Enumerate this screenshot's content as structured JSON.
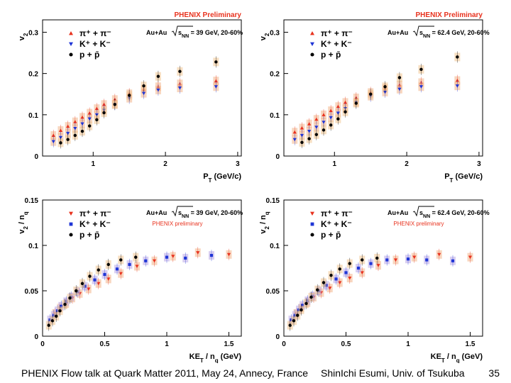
{
  "chart_data": [
    {
      "type": "scatter",
      "preliminary_label": "PHENIX Preliminary",
      "ylabel": "v",
      "ylabel_sub": "2",
      "xlabel": "P",
      "xlabel_sub": "T",
      "xlabel_unit": " (GeV/c)",
      "system_pre": "Au+Au ",
      "system_snn": "s",
      "system_snn_sub": "NN",
      "system_post": " = 39 GeV, 20-60%",
      "xlim": [
        0.3,
        3.05
      ],
      "ylim": [
        0,
        0.33
      ],
      "xticks": [
        "1",
        "2",
        "3"
      ],
      "yticks": [
        "0",
        "0.1",
        "0.2",
        "0.3"
      ],
      "legend": [
        "π⁺ + π⁻",
        "K⁺ + K⁻",
        "p + p̄"
      ],
      "series": [
        {
          "name": "π⁺ + π⁻",
          "color": "#e8321e",
          "marker": "triangle-up",
          "x": [
            0.45,
            0.55,
            0.65,
            0.75,
            0.85,
            0.95,
            1.05,
            1.15,
            1.3,
            1.5,
            1.7,
            1.9,
            2.2,
            2.7
          ],
          "y": [
            0.05,
            0.062,
            0.072,
            0.083,
            0.094,
            0.104,
            0.115,
            0.125,
            0.137,
            0.151,
            0.162,
            0.168,
            0.175,
            0.182
          ]
        },
        {
          "name": "K⁺ + K⁻",
          "color": "#1f35d6",
          "marker": "triangle-down",
          "x": [
            0.45,
            0.55,
            0.65,
            0.75,
            0.85,
            0.95,
            1.05,
            1.15,
            1.3,
            1.5,
            1.7,
            1.9,
            2.2,
            2.7
          ],
          "y": [
            0.035,
            0.045,
            0.055,
            0.067,
            0.078,
            0.09,
            0.1,
            0.111,
            0.125,
            0.14,
            0.152,
            0.16,
            0.165,
            0.168
          ]
        },
        {
          "name": "p + p̄",
          "color": "#000000",
          "marker": "circle",
          "x": [
            0.55,
            0.65,
            0.75,
            0.85,
            0.95,
            1.05,
            1.15,
            1.3,
            1.5,
            1.7,
            1.9,
            2.2,
            2.7
          ],
          "y": [
            0.032,
            0.04,
            0.05,
            0.06,
            0.073,
            0.088,
            0.105,
            0.125,
            0.147,
            0.17,
            0.193,
            0.205,
            0.228
          ]
        }
      ]
    },
    {
      "type": "scatter",
      "preliminary_label": "PHENIX Preliminary",
      "ylabel": "v",
      "ylabel_sub": "2",
      "xlabel": "P",
      "xlabel_sub": "T",
      "xlabel_unit": " (GeV/c)",
      "system_pre": "Au+Au ",
      "system_snn": "s",
      "system_snn_sub": "NN",
      "system_post": " = 62.4 GeV, 20-60%",
      "xlim": [
        0.3,
        3.05
      ],
      "ylim": [
        0,
        0.33
      ],
      "xticks": [
        "1",
        "2",
        "3"
      ],
      "yticks": [
        "0",
        "0.1",
        "0.2",
        "0.3"
      ],
      "legend": [
        "π⁺ + π⁻",
        "K⁺ + K⁻",
        "p + p̄"
      ],
      "series": [
        {
          "name": "π⁺ + π⁻",
          "color": "#e8321e",
          "marker": "triangle-up",
          "x": [
            0.45,
            0.55,
            0.65,
            0.75,
            0.85,
            0.95,
            1.05,
            1.15,
            1.3,
            1.5,
            1.7,
            1.9,
            2.2,
            2.7
          ],
          "y": [
            0.058,
            0.068,
            0.078,
            0.089,
            0.1,
            0.11,
            0.12,
            0.13,
            0.141,
            0.154,
            0.164,
            0.172,
            0.178,
            0.183
          ]
        },
        {
          "name": "K⁺ + K⁻",
          "color": "#1f35d6",
          "marker": "triangle-down",
          "x": [
            0.45,
            0.55,
            0.65,
            0.75,
            0.85,
            0.95,
            1.05,
            1.15,
            1.3,
            1.5,
            1.7,
            1.9,
            2.2,
            2.7
          ],
          "y": [
            0.04,
            0.05,
            0.06,
            0.07,
            0.082,
            0.093,
            0.104,
            0.115,
            0.13,
            0.145,
            0.155,
            0.162,
            0.168,
            0.17
          ]
        },
        {
          "name": "p + p̄",
          "color": "#000000",
          "marker": "circle",
          "x": [
            0.55,
            0.65,
            0.75,
            0.85,
            0.95,
            1.05,
            1.15,
            1.3,
            1.5,
            1.7,
            1.9,
            2.2,
            2.7
          ],
          "y": [
            0.033,
            0.042,
            0.052,
            0.063,
            0.075,
            0.09,
            0.107,
            0.128,
            0.15,
            0.168,
            0.19,
            0.21,
            0.24
          ]
        }
      ]
    },
    {
      "type": "scatter",
      "preliminary_label": "PHENIX preliminary",
      "ylabel": "v",
      "ylabel_sub": "2",
      "ylabel_tail": " / n",
      "ylabel_tail_sub": "q",
      "xlabel": "KE",
      "xlabel_sub": "T",
      "xlabel_unit": " / n",
      "xlabel_unit_sub": "q",
      "xlabel_unit2": " (GeV)",
      "system_pre": "Au+Au ",
      "system_snn": "s",
      "system_snn_sub": "NN",
      "system_post": " = 39 GeV, 20-60%",
      "xlim": [
        0,
        1.6
      ],
      "ylim": [
        0,
        0.15
      ],
      "xticks": [
        "0",
        "0.5",
        "1",
        "1.5"
      ],
      "yticks": [
        "0",
        "0.05",
        "0.1",
        "0.15"
      ],
      "legend": [
        "π⁺ + π⁻",
        "K⁺ + K⁻",
        "p + p̄"
      ],
      "series": [
        {
          "name": "π⁺ + π⁻",
          "color": "#e8321e",
          "marker": "triangle-down",
          "x": [
            0.1,
            0.14,
            0.19,
            0.24,
            0.3,
            0.37,
            0.45,
            0.53,
            0.63,
            0.76,
            0.9,
            1.05,
            1.25,
            1.5
          ],
          "y": [
            0.025,
            0.031,
            0.036,
            0.042,
            0.047,
            0.052,
            0.058,
            0.063,
            0.069,
            0.077,
            0.083,
            0.088,
            0.092,
            0.09
          ]
        },
        {
          "name": "K⁺ + K⁻",
          "color": "#1f35d6",
          "marker": "square",
          "x": [
            0.06,
            0.09,
            0.12,
            0.15,
            0.19,
            0.23,
            0.28,
            0.34,
            0.42,
            0.5,
            0.6,
            0.7,
            0.83,
            1.0,
            1.15,
            1.36
          ],
          "y": [
            0.018,
            0.023,
            0.028,
            0.033,
            0.038,
            0.043,
            0.049,
            0.055,
            0.062,
            0.068,
            0.074,
            0.079,
            0.083,
            0.087,
            0.086,
            0.089
          ]
        },
        {
          "name": "p + p̄",
          "color": "#000000",
          "marker": "circle",
          "x": [
            0.05,
            0.08,
            0.11,
            0.14,
            0.18,
            0.22,
            0.27,
            0.32,
            0.38,
            0.45,
            0.53,
            0.63,
            0.75
          ],
          "y": [
            0.012,
            0.017,
            0.022,
            0.028,
            0.035,
            0.042,
            0.05,
            0.058,
            0.066,
            0.073,
            0.079,
            0.084,
            0.087
          ]
        }
      ]
    },
    {
      "type": "scatter",
      "preliminary_label": "PHENIX preliminary",
      "ylabel": "v",
      "ylabel_sub": "2",
      "ylabel_tail": " / n",
      "ylabel_tail_sub": "q",
      "xlabel": "KE",
      "xlabel_sub": "T",
      "xlabel_unit": " / n",
      "xlabel_unit_sub": "q",
      "xlabel_unit2": " (GeV)",
      "system_pre": "Au+Au ",
      "system_snn": "s",
      "system_snn_sub": "NN",
      "system_post": " = 62.4 GeV, 20-60%",
      "xlim": [
        0,
        1.6
      ],
      "ylim": [
        0,
        0.15
      ],
      "xticks": [
        "0",
        "0.5",
        "1",
        "1.5"
      ],
      "yticks": [
        "0",
        "0.05",
        "0.1",
        "0.15"
      ],
      "legend": [
        "π⁺ + π⁻",
        "K⁺ + K⁻",
        "p + p̄"
      ],
      "series": [
        {
          "name": "π⁺ + π⁻",
          "color": "#e8321e",
          "marker": "triangle-down",
          "x": [
            0.1,
            0.14,
            0.19,
            0.24,
            0.3,
            0.37,
            0.45,
            0.53,
            0.63,
            0.76,
            0.9,
            1.05,
            1.25,
            1.5
          ],
          "y": [
            0.025,
            0.031,
            0.037,
            0.043,
            0.048,
            0.053,
            0.059,
            0.064,
            0.07,
            0.078,
            0.084,
            0.087,
            0.09,
            0.087
          ]
        },
        {
          "name": "K⁺ + K⁻",
          "color": "#1f35d6",
          "marker": "square",
          "x": [
            0.06,
            0.09,
            0.12,
            0.15,
            0.19,
            0.23,
            0.28,
            0.34,
            0.42,
            0.5,
            0.6,
            0.7,
            0.83,
            1.0,
            1.15,
            1.36
          ],
          "y": [
            0.018,
            0.023,
            0.029,
            0.034,
            0.039,
            0.044,
            0.05,
            0.056,
            0.063,
            0.07,
            0.075,
            0.08,
            0.084,
            0.085,
            0.084,
            0.083
          ]
        },
        {
          "name": "p + p̄",
          "color": "#000000",
          "marker": "circle",
          "x": [
            0.05,
            0.08,
            0.11,
            0.14,
            0.18,
            0.22,
            0.27,
            0.32,
            0.38,
            0.45,
            0.53,
            0.63,
            0.75
          ],
          "y": [
            0.012,
            0.017,
            0.023,
            0.029,
            0.036,
            0.043,
            0.051,
            0.059,
            0.067,
            0.074,
            0.08,
            0.084,
            0.086
          ]
        }
      ]
    }
  ],
  "footer": {
    "left": "PHENIX Flow talk at Quark Matter 2011, May 24, Annecy, France",
    "middle": "ShinIchi Esumi, Univ. of Tsukuba",
    "page": "35"
  }
}
